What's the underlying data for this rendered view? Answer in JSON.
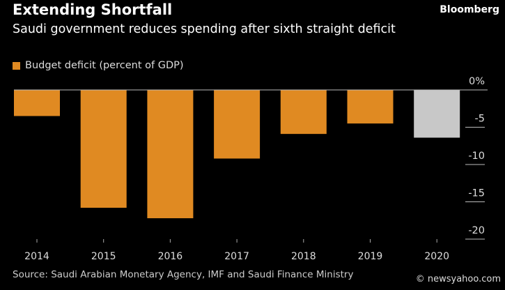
{
  "chart_data": {
    "type": "bar",
    "title": "Extending Shortfall",
    "subtitle": "Saudi government reduces spending after sixth straight deficit",
    "legend": [
      {
        "name": "Budget deficit (percent of GDP)",
        "color": "#e08a22"
      }
    ],
    "legend_placement": "top-left",
    "categories": [
      "2014",
      "2015",
      "2016",
      "2017",
      "2018",
      "2019",
      "2020"
    ],
    "values": [
      -3.5,
      -15.8,
      -17.2,
      -9.2,
      -5.9,
      -4.5,
      -6.4
    ],
    "bar_colors": [
      "#e08a22",
      "#e08a22",
      "#e08a22",
      "#e08a22",
      "#e08a22",
      "#e08a22",
      "#c8c8c8"
    ],
    "ylim": [
      -20,
      0
    ],
    "yticks": [
      0,
      -5,
      -10,
      -15,
      -20
    ],
    "ytick_labels": [
      "0%",
      "-5",
      "-10",
      "-15",
      "-20"
    ],
    "y_axis_position": "right",
    "grid": false
  },
  "source": "Source: Saudi Arabian Monetary Agency, IMF and Saudi Finance Ministry",
  "watermark": {
    "text": "© newsyahoo.com",
    "logo": "Bloomberg"
  }
}
